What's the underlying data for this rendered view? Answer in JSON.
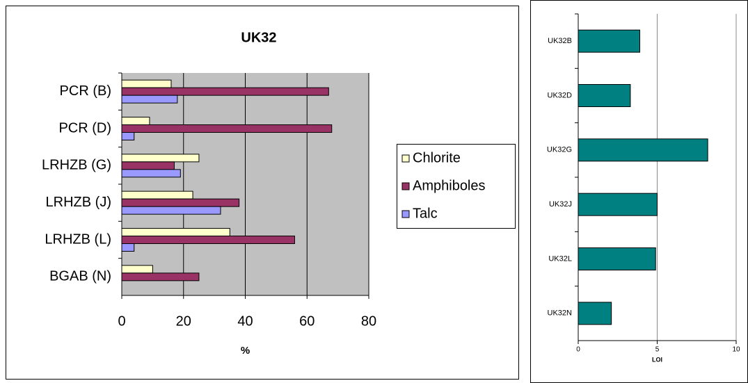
{
  "chart_data": [
    {
      "type": "hbar",
      "title": "UK32",
      "x_label": "%",
      "categories": [
        "PCR (B)",
        "PCR (D)",
        "LRHZB (G)",
        "LRHZB (J)",
        "LRHZB (L)",
        "BGAB (N)"
      ],
      "series": [
        {
          "name": "Chlorite",
          "color": "#ffffcc",
          "values": [
            16,
            9,
            25,
            23,
            35,
            10
          ]
        },
        {
          "name": "Amphiboles",
          "color": "#993366",
          "values": [
            67,
            68,
            17,
            38,
            56,
            25
          ]
        },
        {
          "name": "Talc",
          "color": "#9999ff",
          "values": [
            18,
            4,
            19,
            32,
            4,
            0
          ]
        }
      ],
      "xlim": [
        0,
        80
      ],
      "xticks": [
        0,
        20,
        40,
        60,
        80
      ],
      "grid": true,
      "legend": "right"
    },
    {
      "type": "hbar",
      "x_label": "LOI",
      "categories": [
        "UK32B",
        "UK32D",
        "UK32G",
        "UK32J",
        "UK32L",
        "UK32N"
      ],
      "series": [
        {
          "color": "#008080",
          "values": [
            3.9,
            3.3,
            8.2,
            5.0,
            4.9,
            2.1
          ]
        }
      ],
      "xlim": [
        0,
        10
      ],
      "xticks": [
        0,
        5,
        10
      ],
      "grid": true
    }
  ]
}
